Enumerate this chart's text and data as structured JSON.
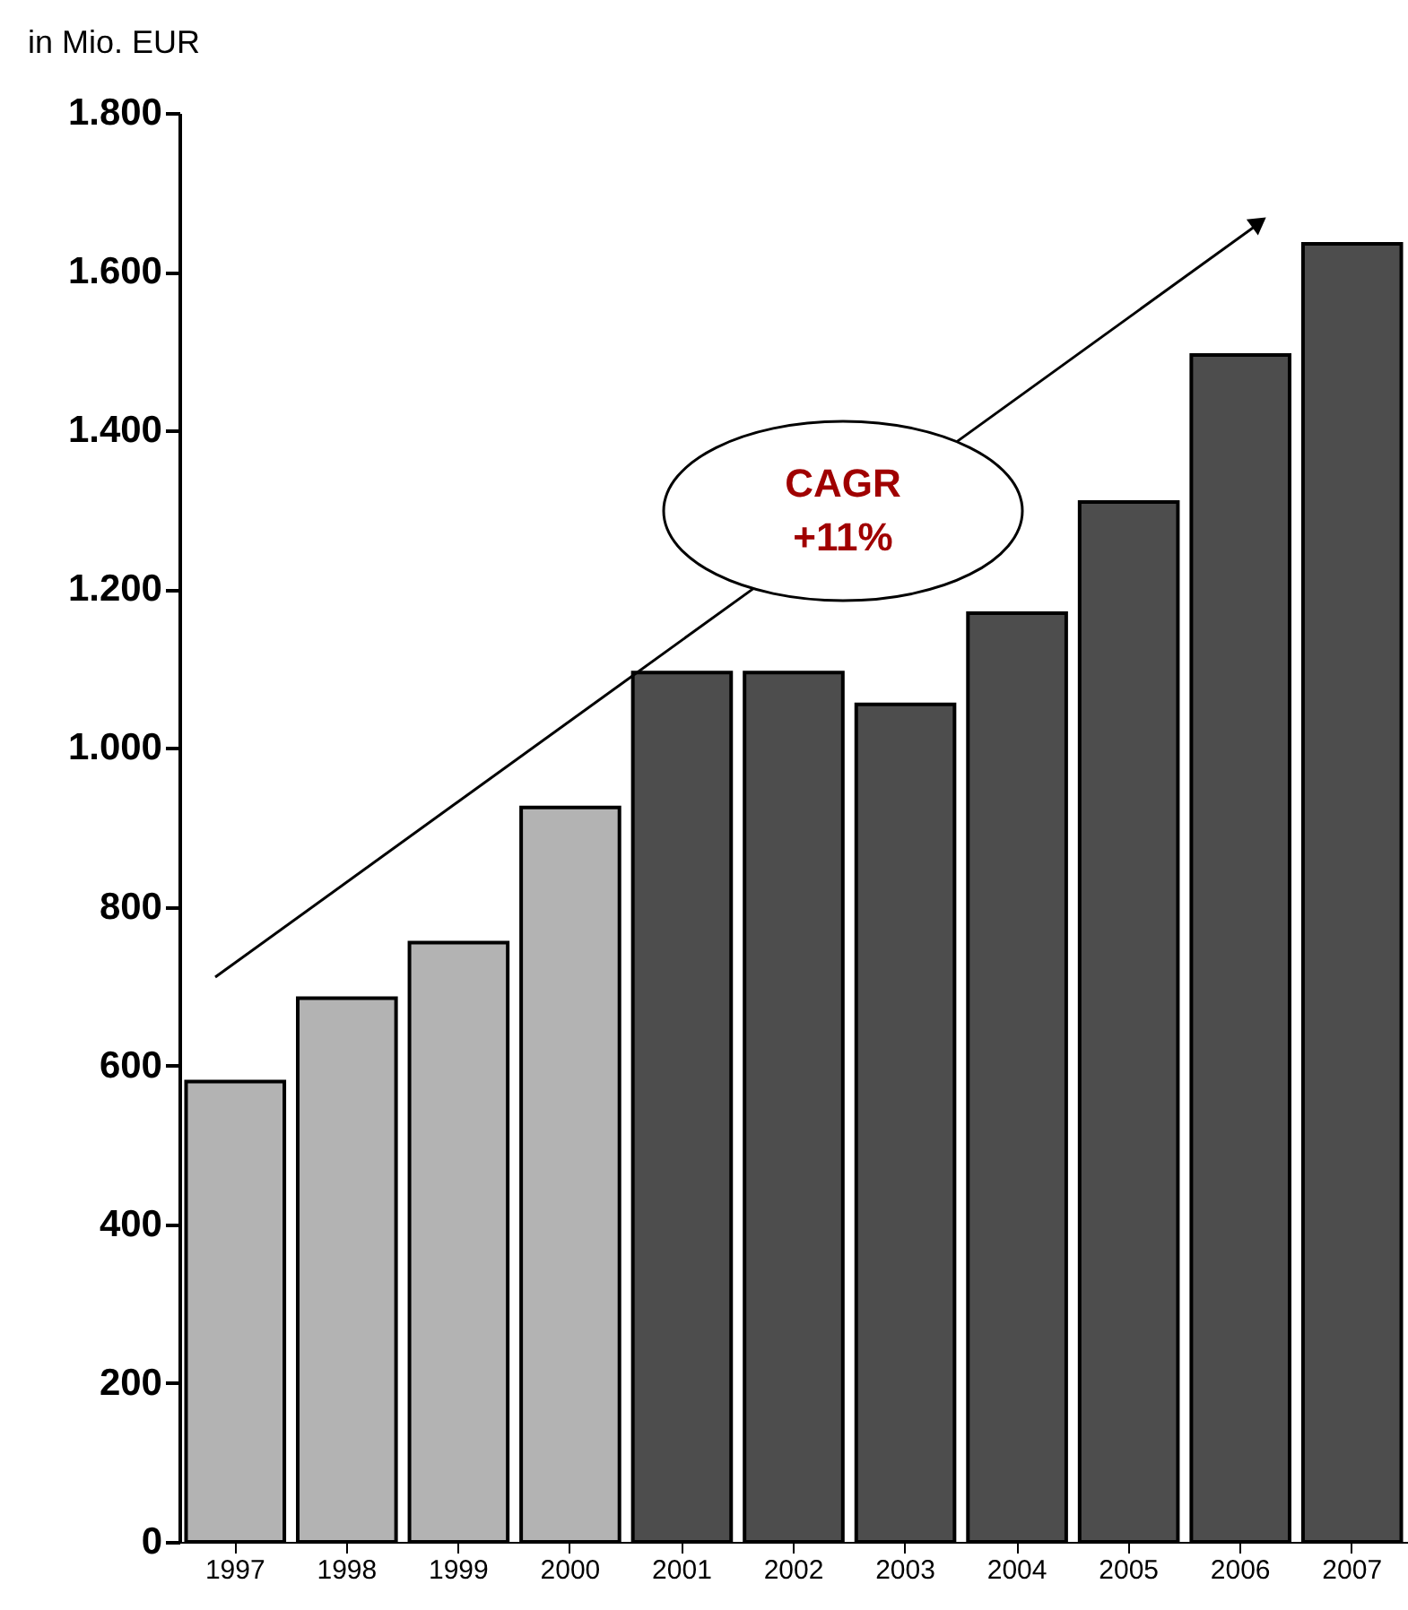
{
  "chart_data": {
    "type": "bar",
    "ylabel": "in Mio. EUR",
    "categories": [
      "1997",
      "1998",
      "1999",
      "2000",
      "2001",
      "2002",
      "2003",
      "2004",
      "2005",
      "2006",
      "2007"
    ],
    "values": [
      580,
      685,
      755,
      925,
      1095,
      1095,
      1055,
      1170,
      1310,
      1495,
      1635
    ],
    "colors": [
      "#b3b3b3",
      "#b3b3b3",
      "#b3b3b3",
      "#b3b3b3",
      "#4d4d4d",
      "#4d4d4d",
      "#4d4d4d",
      "#4d4d4d",
      "#4d4d4d",
      "#4d4d4d",
      "#4d4d4d"
    ],
    "ylim": [
      0,
      1800
    ],
    "yticks": [
      0,
      200,
      400,
      600,
      800,
      {
        "value": 1000,
        "label": "1.000"
      },
      {
        "value": 1200,
        "label": "1.200"
      },
      {
        "value": 1400,
        "label": "1.400"
      },
      {
        "value": 1600,
        "label": "1.600"
      },
      {
        "value": 1800,
        "label": "1.800"
      }
    ],
    "annotations": [
      "CAGR",
      "+11%"
    ],
    "grid": false
  }
}
